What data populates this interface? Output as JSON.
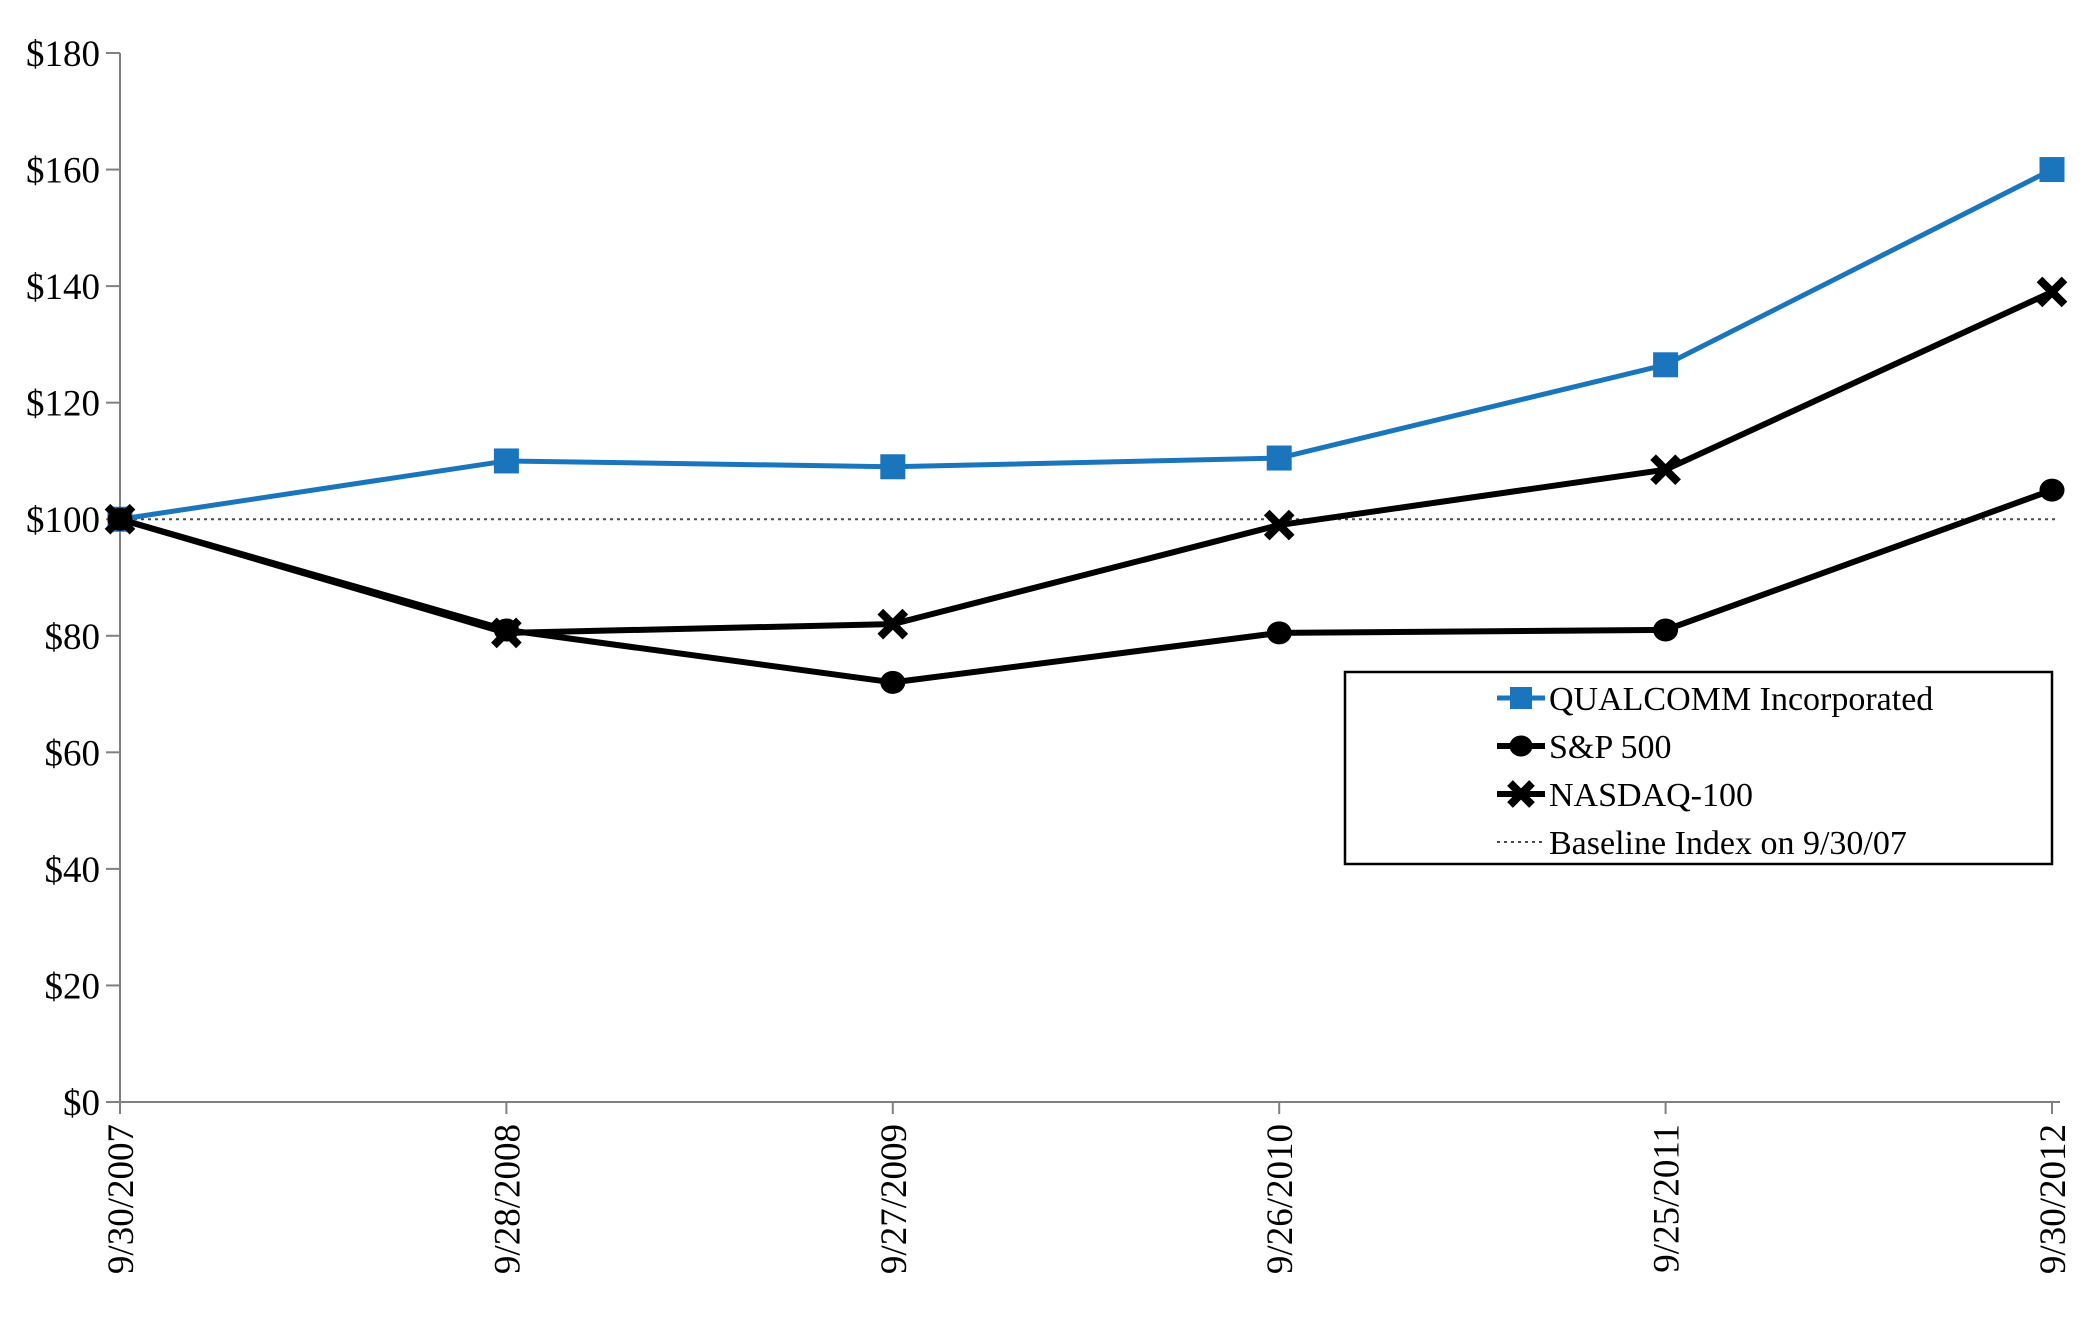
{
  "chart_data": {
    "type": "line",
    "title": "",
    "categories": [
      "9/30/2007",
      "9/28/2008",
      "9/27/2009",
      "9/26/2010",
      "9/25/2011",
      "9/30/2012"
    ],
    "series": [
      {
        "name": "QUALCOMM Incorporated",
        "values": [
          100,
          110,
          109,
          110.5,
          126.5,
          160
        ],
        "color": "#1B75BC",
        "marker": "square",
        "line_width": 5
      },
      {
        "name": "S&P 500",
        "values": [
          100,
          81,
          72,
          80.5,
          81,
          105
        ],
        "color": "#000000",
        "marker": "circle",
        "line_width": 6
      },
      {
        "name": "NASDAQ-100",
        "values": [
          100,
          80.5,
          82,
          99,
          108.5,
          139
        ],
        "color": "#000000",
        "marker": "x",
        "line_width": 6
      }
    ],
    "baseline": {
      "label": "Baseline Index on 9/30/07",
      "value": 100,
      "style": "dotted",
      "color": "#4A4A4A"
    },
    "ylim": [
      0,
      180
    ],
    "y_tick_step": 20,
    "y_tick_labels": [
      "$0",
      "$20",
      "$40",
      "$60",
      "$80",
      "$100",
      "$120",
      "$140",
      "$160",
      "$180"
    ],
    "xlabel": "",
    "ylabel": "",
    "grid": false,
    "legend_position": "middle-right",
    "legend_entries": [
      "QUALCOMM Incorporated",
      "S&P 500",
      "NASDAQ-100",
      "Baseline Index on 9/30/07"
    ]
  },
  "colors": {
    "qualcomm_blue": "#1B75BC",
    "series_black": "#000000",
    "axis_gray": "#808080",
    "baseline_gray": "#4A4A4A",
    "background": "#FFFFFF"
  }
}
